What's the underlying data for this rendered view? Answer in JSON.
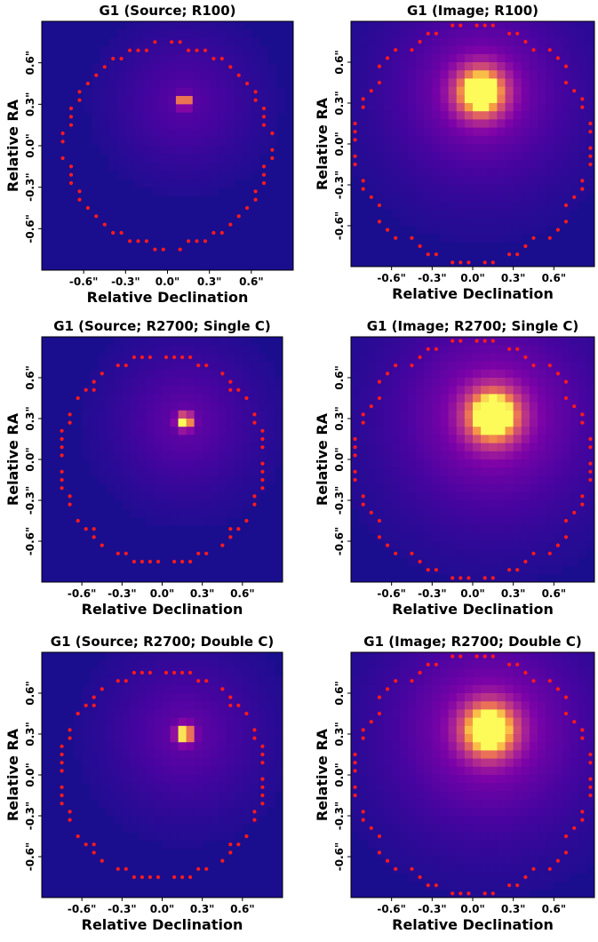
{
  "figure": {
    "colors": {
      "background": "#1a0e8f",
      "peak": "#fcfb5a",
      "mask_dots": "#ff1a1a"
    }
  },
  "chart_data": [
    {
      "type": "heatmap",
      "title": "G1 (Source; R100)",
      "xlabel": "Relative Declination",
      "ylabel": "Relative RA",
      "xticks": [
        "-0.6\"",
        "-0.3\"",
        "0.0\"",
        "0.3\"",
        "0.6\""
      ],
      "yticks": [
        "0.6\"",
        "0.3\"",
        "0.0\"",
        "-0.3\"",
        "-0.6\""
      ],
      "xlim": [
        -0.9,
        0.9
      ],
      "ylim": [
        -0.9,
        0.9
      ],
      "colormap": "plasma",
      "peak": {
        "x": 0.12,
        "y": 0.32,
        "intensity": 1.0
      },
      "core_spread": 0.03,
      "halo": {
        "spread": 0.35,
        "intensity": 0.22
      },
      "mask_radius": 0.73
    },
    {
      "type": "heatmap",
      "title": "G1 (Image; R100)",
      "xlabel": "Relative Declination",
      "ylabel": "Relative RA",
      "xticks": [
        "-0.6\"",
        "-0.3\"",
        "0.0\"",
        "0.3\"",
        "0.6\""
      ],
      "yticks": [
        "0.6\"",
        "0.3\"",
        "0.0\"",
        "-0.3\"",
        "-0.6\""
      ],
      "xlim": [
        -0.9,
        0.9
      ],
      "ylim": [
        -0.9,
        0.9
      ],
      "colormap": "plasma",
      "peak": {
        "x": 0.06,
        "y": 0.38,
        "intensity": 1.0
      },
      "core_spread": 0.13,
      "halo": {
        "spread": 0.5,
        "intensity": 0.35
      },
      "mask_radius": 0.86
    },
    {
      "type": "heatmap",
      "title": "G1 (Source; R2700; Single C)",
      "xlabel": "Relative Declination",
      "ylabel": "Relative RA",
      "xticks": [
        "-0.6\"",
        "-0.3\"",
        "0.0\"",
        "0.3\"",
        "0.6\""
      ],
      "yticks": [
        "0.6\"",
        "0.3\"",
        "0.0\"",
        "-0.3\"",
        "-0.6\""
      ],
      "xlim": [
        -0.9,
        0.9
      ],
      "ylim": [
        -0.9,
        0.9
      ],
      "colormap": "plasma",
      "peak": {
        "x": 0.17,
        "y": 0.28,
        "intensity": 1.0
      },
      "core_spread": 0.04,
      "halo": {
        "spread": 0.38,
        "intensity": 0.25
      },
      "mask_radius": 0.76
    },
    {
      "type": "heatmap",
      "title": "G1 (Image; R2700; Single C)",
      "xlabel": "Relative Declination",
      "ylabel": "Relative RA",
      "xticks": [
        "-0.6\"",
        "-0.3\"",
        "0.0\"",
        "0.3\"",
        "0.6\""
      ],
      "yticks": [
        "0.6\"",
        "0.3\"",
        "0.0\"",
        "-0.3\"",
        "-0.6\""
      ],
      "xlim": [
        -0.9,
        0.9
      ],
      "ylim": [
        -0.9,
        0.9
      ],
      "colormap": "plasma",
      "peak": {
        "x": 0.15,
        "y": 0.32,
        "intensity": 1.0
      },
      "core_spread": 0.14,
      "halo": {
        "spread": 0.55,
        "intensity": 0.38
      },
      "mask_radius": 0.86
    },
    {
      "type": "heatmap",
      "title": "G1 (Source; R2700; Double C)",
      "xlabel": "Relative Declination",
      "ylabel": "Relative RA",
      "xticks": [
        "-0.6\"",
        "-0.3\"",
        "0.0\"",
        "0.3\"",
        "0.6\""
      ],
      "yticks": [
        "0.6\"",
        "0.3\"",
        "0.0\"",
        "-0.3\"",
        "-0.6\""
      ],
      "xlim": [
        -0.9,
        0.9
      ],
      "ylim": [
        -0.9,
        0.9
      ],
      "colormap": "plasma",
      "peak": {
        "x": 0.17,
        "y": 0.3,
        "intensity": 1.0
      },
      "core_spread": 0.045,
      "halo": {
        "spread": 0.4,
        "intensity": 0.25
      },
      "mask_radius": 0.76
    },
    {
      "type": "heatmap",
      "title": "G1 (Image; R2700; Double C)",
      "xlabel": "Relative Declination",
      "ylabel": "Relative RA",
      "xticks": [
        "-0.6\"",
        "-0.3\"",
        "0.0\"",
        "0.3\"",
        "0.6\""
      ],
      "yticks": [
        "0.6\"",
        "0.3\"",
        "0.0\"",
        "-0.3\"",
        "-0.6\""
      ],
      "xlim": [
        -0.9,
        0.9
      ],
      "ylim": [
        -0.9,
        0.9
      ],
      "colormap": "plasma",
      "peak": {
        "x": 0.12,
        "y": 0.33,
        "intensity": 1.0
      },
      "core_spread": 0.14,
      "halo": {
        "spread": 0.55,
        "intensity": 0.38
      },
      "mask_radius": 0.86
    }
  ]
}
